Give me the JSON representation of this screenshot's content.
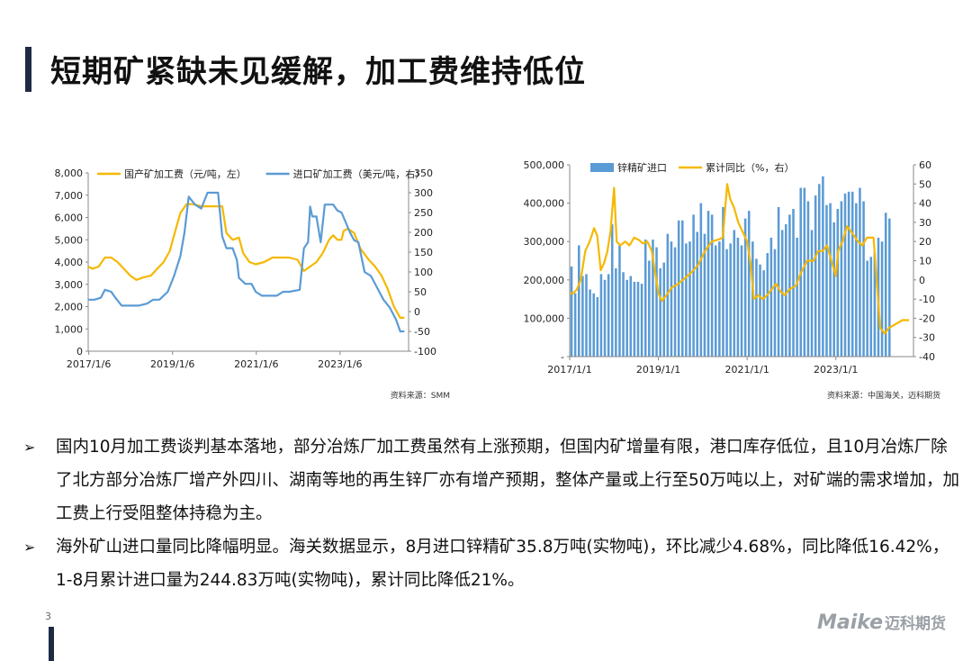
{
  "slide": {
    "title": "短期矿紧缺未见缓解，加工费维持低位",
    "page_number": "3",
    "logo_text": "Maike",
    "logo_cn": "迈科期货"
  },
  "bullets": [
    "国内10月加工费谈判基本落地，部分冶炼厂加工费虽然有上涨预期，但国内矿增量有限，港口库存低位，且10月冶炼厂除了北方部分冶炼厂增产外四川、湖南等地的再生锌厂亦有增产预期，整体产量或上行至50万吨以上，对矿端的需求增加，加工费上行受阻整体持稳为主。",
    "海外矿山进口量同比降幅明显。海关数据显示，8月进口锌精矿35.8万吨(实物吨)，环比减少4.68%，同比降低16.42%，1-8月累计进口量为244.83万吨(实物吨)，累计同比降低21%。"
  ],
  "colors": {
    "gold": "#F5B800",
    "blue": "#5B9BD5",
    "bar": "#5B9BD5",
    "dark": "#1f2a44"
  },
  "chart_data": [
    {
      "type": "line",
      "source": "资料来源：SMM",
      "x_ticks": [
        "2017/1/6",
        "2019/1/6",
        "2021/1/6",
        "2023/1/6"
      ],
      "x_range": [
        2017.0,
        2024.65
      ],
      "y_left_ticks": [
        "0",
        "1,000",
        "2,000",
        "3,000",
        "4,000",
        "5,000",
        "6,000",
        "7,000",
        "8,000"
      ],
      "y_left_range": [
        0,
        8000
      ],
      "y_right_ticks": [
        "-100",
        "-50",
        "0",
        "50",
        "100",
        "150",
        "200",
        "250",
        "300",
        "350"
      ],
      "y_right_range": [
        -100,
        350
      ],
      "legend_position": "top",
      "series": [
        {
          "name": "国产矿加工费（元/吨，左）",
          "axis": "left",
          "color": "#F5B800",
          "points": [
            [
              2017.0,
              3800
            ],
            [
              2017.1,
              3700
            ],
            [
              2017.25,
              3800
            ],
            [
              2017.4,
              4200
            ],
            [
              2017.55,
              4200
            ],
            [
              2017.7,
              4000
            ],
            [
              2017.85,
              3700
            ],
            [
              2018.0,
              3400
            ],
            [
              2018.15,
              3200
            ],
            [
              2018.3,
              3300
            ],
            [
              2018.5,
              3400
            ],
            [
              2018.65,
              3700
            ],
            [
              2018.8,
              4000
            ],
            [
              2018.95,
              4500
            ],
            [
              2019.05,
              5200
            ],
            [
              2019.2,
              6200
            ],
            [
              2019.35,
              6600
            ],
            [
              2019.5,
              6600
            ],
            [
              2019.7,
              6500
            ],
            [
              2019.9,
              6500
            ],
            [
              2020.2,
              6500
            ],
            [
              2020.3,
              5300
            ],
            [
              2020.45,
              5000
            ],
            [
              2020.6,
              5100
            ],
            [
              2020.7,
              4400
            ],
            [
              2020.85,
              4000
            ],
            [
              2021.0,
              3900
            ],
            [
              2021.2,
              4000
            ],
            [
              2021.4,
              4200
            ],
            [
              2021.6,
              4200
            ],
            [
              2021.8,
              4200
            ],
            [
              2022.0,
              4100
            ],
            [
              2022.15,
              3600
            ],
            [
              2022.3,
              3800
            ],
            [
              2022.45,
              4000
            ],
            [
              2022.6,
              4400
            ],
            [
              2022.75,
              5000
            ],
            [
              2022.85,
              5200
            ],
            [
              2022.95,
              5000
            ],
            [
              2023.05,
              5000
            ],
            [
              2023.1,
              5400
            ],
            [
              2023.2,
              5500
            ],
            [
              2023.35,
              5300
            ],
            [
              2023.5,
              4600
            ],
            [
              2023.7,
              4100
            ],
            [
              2023.85,
              3800
            ],
            [
              2024.0,
              3400
            ],
            [
              2024.15,
              2800
            ],
            [
              2024.3,
              2000
            ],
            [
              2024.45,
              1500
            ],
            [
              2024.55,
              1500
            ]
          ]
        },
        {
          "name": "进口矿加工费（美元/吨，右）",
          "axis": "right",
          "color": "#5B9BD5",
          "points": [
            [
              2017.0,
              30
            ],
            [
              2017.15,
              30
            ],
            [
              2017.3,
              35
            ],
            [
              2017.4,
              55
            ],
            [
              2017.55,
              50
            ],
            [
              2017.65,
              35
            ],
            [
              2017.8,
              15
            ],
            [
              2018.0,
              15
            ],
            [
              2018.2,
              15
            ],
            [
              2018.4,
              20
            ],
            [
              2018.55,
              30
            ],
            [
              2018.7,
              30
            ],
            [
              2018.9,
              50
            ],
            [
              2019.05,
              90
            ],
            [
              2019.2,
              140
            ],
            [
              2019.3,
              200
            ],
            [
              2019.4,
              290
            ],
            [
              2019.55,
              270
            ],
            [
              2019.7,
              260
            ],
            [
              2019.85,
              300
            ],
            [
              2020.1,
              300
            ],
            [
              2020.2,
              190
            ],
            [
              2020.3,
              160
            ],
            [
              2020.45,
              160
            ],
            [
              2020.55,
              130
            ],
            [
              2020.6,
              85
            ],
            [
              2020.75,
              70
            ],
            [
              2020.9,
              70
            ],
            [
              2021.0,
              50
            ],
            [
              2021.15,
              40
            ],
            [
              2021.3,
              40
            ],
            [
              2021.5,
              40
            ],
            [
              2021.65,
              50
            ],
            [
              2021.8,
              50
            ],
            [
              2022.05,
              55
            ],
            [
              2022.15,
              160
            ],
            [
              2022.25,
              175
            ],
            [
              2022.3,
              265
            ],
            [
              2022.35,
              240
            ],
            [
              2022.45,
              240
            ],
            [
              2022.55,
              175
            ],
            [
              2022.65,
              270
            ],
            [
              2022.85,
              270
            ],
            [
              2022.95,
              255
            ],
            [
              2023.05,
              250
            ],
            [
              2023.15,
              225
            ],
            [
              2023.25,
              200
            ],
            [
              2023.35,
              180
            ],
            [
              2023.45,
              175
            ],
            [
              2023.6,
              100
            ],
            [
              2023.75,
              90
            ],
            [
              2023.9,
              60
            ],
            [
              2024.05,
              30
            ],
            [
              2024.2,
              10
            ],
            [
              2024.35,
              -20
            ],
            [
              2024.45,
              -50
            ],
            [
              2024.55,
              -50
            ]
          ]
        }
      ]
    },
    {
      "type": "bar",
      "source": "资料来源：中国海关，迈科期货",
      "x_ticks": [
        "2017/1/1",
        "2019/1/1",
        "2021/1/1",
        "2023/1/1"
      ],
      "x_range": [
        2017.0,
        2024.75
      ],
      "y_left_ticks": [
        "-",
        "100,000",
        "200,000",
        "300,000",
        "400,000",
        "500,000"
      ],
      "y_left_range": [
        0,
        500000
      ],
      "y_right_ticks": [
        "-40",
        "-30",
        "-20",
        "-10",
        "0",
        "10",
        "20",
        "30",
        "40",
        "50",
        "60"
      ],
      "y_right_range": [
        -40,
        60
      ],
      "legend_position": "top",
      "bar_series": {
        "name": "锌精矿进口",
        "color": "#5B9BD5",
        "start": 2017.0,
        "values": [
          235000,
          165000,
          290000,
          210000,
          215000,
          175000,
          165000,
          155000,
          215000,
          200000,
          215000,
          345000,
          230000,
          290000,
          220000,
          200000,
          210000,
          195000,
          195000,
          190000,
          305000,
          250000,
          305000,
          285000,
          230000,
          245000,
          320000,
          300000,
          285000,
          355000,
          355000,
          295000,
          300000,
          370000,
          325000,
          400000,
          320000,
          380000,
          370000,
          290000,
          300000,
          390000,
          280000,
          295000,
          330000,
          310000,
          290000,
          360000,
          380000,
          300000,
          255000,
          240000,
          225000,
          270000,
          310000,
          280000,
          390000,
          330000,
          345000,
          370000,
          385000,
          310000,
          440000,
          440000,
          405000,
          330000,
          420000,
          450000,
          470000,
          395000,
          400000,
          350000,
          385000,
          405000,
          425000,
          430000,
          430000,
          400000,
          440000,
          405000,
          250000,
          260000,
          270000,
          310000,
          300000,
          375000,
          360000
        ]
      },
      "series": [
        {
          "name": "累计同比（%，右）",
          "axis": "right",
          "color": "#F5B800",
          "points": [
            [
              2017.0,
              -7
            ],
            [
              2017.08,
              -7
            ],
            [
              2017.16,
              -5
            ],
            [
              2017.25,
              0
            ],
            [
              2017.35,
              15
            ],
            [
              2017.45,
              20
            ],
            [
              2017.55,
              27
            ],
            [
              2017.62,
              23
            ],
            [
              2017.7,
              5
            ],
            [
              2017.78,
              9
            ],
            [
              2017.85,
              15
            ],
            [
              2017.92,
              25
            ],
            [
              2018.0,
              48
            ],
            [
              2018.06,
              20
            ],
            [
              2018.14,
              18
            ],
            [
              2018.25,
              20
            ],
            [
              2018.35,
              18
            ],
            [
              2018.45,
              22
            ],
            [
              2018.55,
              21
            ],
            [
              2018.65,
              19
            ],
            [
              2018.75,
              20
            ],
            [
              2018.85,
              15
            ],
            [
              2019.0,
              -7
            ],
            [
              2019.08,
              -11
            ],
            [
              2019.18,
              -8
            ],
            [
              2019.3,
              -4
            ],
            [
              2019.45,
              -2
            ],
            [
              2019.6,
              1
            ],
            [
              2019.75,
              4
            ],
            [
              2019.9,
              8
            ],
            [
              2020.05,
              15
            ],
            [
              2020.2,
              20
            ],
            [
              2020.35,
              21
            ],
            [
              2020.45,
              22
            ],
            [
              2020.55,
              50
            ],
            [
              2020.62,
              42
            ],
            [
              2020.7,
              38
            ],
            [
              2020.8,
              30
            ],
            [
              2020.9,
              25
            ],
            [
              2021.0,
              20
            ],
            [
              2021.08,
              8
            ],
            [
              2021.15,
              -10
            ],
            [
              2021.25,
              -8
            ],
            [
              2021.35,
              -10
            ],
            [
              2021.45,
              -8
            ],
            [
              2021.55,
              -5
            ],
            [
              2021.65,
              -2
            ],
            [
              2021.75,
              -6
            ],
            [
              2021.85,
              -8
            ],
            [
              2021.95,
              -5
            ],
            [
              2022.1,
              -3
            ],
            [
              2022.2,
              3
            ],
            [
              2022.35,
              10
            ],
            [
              2022.5,
              10
            ],
            [
              2022.6,
              15
            ],
            [
              2022.7,
              15
            ],
            [
              2022.8,
              18
            ],
            [
              2022.9,
              10
            ],
            [
              2023.0,
              2
            ],
            [
              2023.05,
              15
            ],
            [
              2023.15,
              20
            ],
            [
              2023.25,
              28
            ],
            [
              2023.35,
              25
            ],
            [
              2023.5,
              20
            ],
            [
              2023.6,
              18
            ],
            [
              2023.7,
              22
            ],
            [
              2023.85,
              22
            ],
            [
              2024.0,
              -25
            ],
            [
              2024.1,
              -28
            ],
            [
              2024.2,
              -25
            ],
            [
              2024.35,
              -23
            ],
            [
              2024.5,
              -21
            ],
            [
              2024.65,
              -21
            ]
          ]
        }
      ]
    }
  ]
}
